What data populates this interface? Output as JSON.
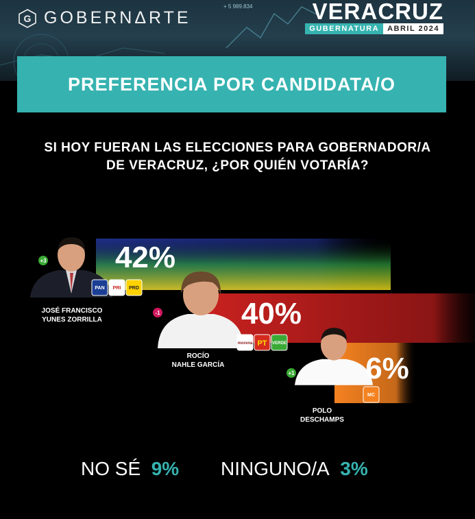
{
  "header": {
    "brand": "GOBERNΔRTE",
    "state": "VERACRUZ",
    "subtitle_a": "GUBERNATURA",
    "subtitle_b": "ABRIL 2024",
    "ticker": "+ 5 989.834"
  },
  "title": "PREFERENCIA POR CANDIDATA/O",
  "question_line1": "SI HOY FUERAN LAS ELECCIONES PARA GOBERNADOR/A",
  "question_line2": "DE VERACRUZ, ¿POR QUIÉN VOTARÍA?",
  "chart_data": {
    "type": "bar",
    "categories": [
      "JOSÉ FRANCISCO YUNES ZORRILLA",
      "ROCÍO NAHLE GARCÍA",
      "POLO DESCHAMPS"
    ],
    "values": [
      42,
      40,
      6
    ],
    "value_labels": [
      "42%",
      "40%",
      "6%"
    ],
    "changes": [
      "+3",
      "-1",
      "+1"
    ],
    "name_lines": [
      [
        "JOSÉ FRANCISCO",
        "YUNES ZORRILLA"
      ],
      [
        "ROCÍO",
        "NAHLE GARCÍA"
      ],
      [
        "POLO",
        "DESCHAMPS"
      ]
    ],
    "parties": [
      [
        "PAN",
        "PRI",
        "PRD"
      ],
      [
        "morena",
        "PT",
        "VERDE"
      ],
      [
        "MC"
      ]
    ],
    "colors": [
      "#1f2f8a",
      "#c8211f",
      "#f58220"
    ],
    "change_colors": [
      "#3aa935",
      "#d1175d",
      "#3aa935"
    ],
    "others": [
      {
        "label": "NO SÉ",
        "value": "9%"
      },
      {
        "label": "NINGUNO/A",
        "value": "3%"
      }
    ]
  }
}
